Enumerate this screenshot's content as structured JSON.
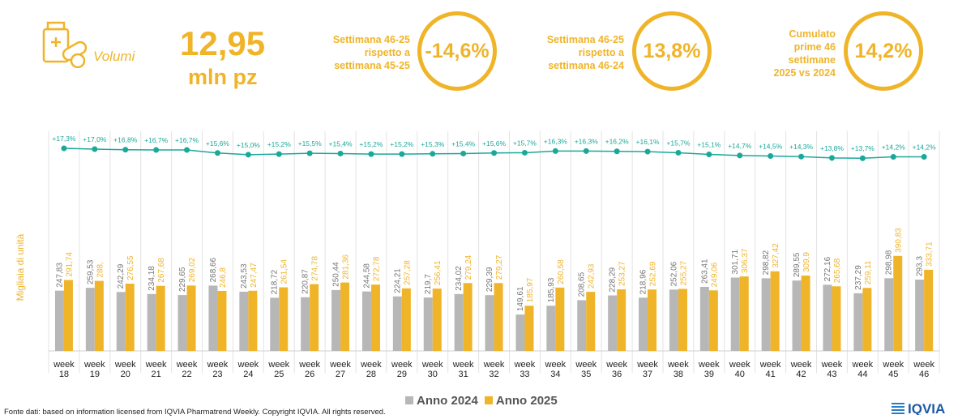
{
  "kpi": {
    "label": "Volumi",
    "value": "12,95",
    "unit": "mln pz",
    "comparisons": [
      {
        "text_lines": [
          "Settimana 46-25",
          "rispetto a",
          "settimana 45-25"
        ],
        "value": "-14,6%"
      },
      {
        "text_lines": [
          "Settimana 46-25",
          "rispetto a",
          "settimana 46-24"
        ],
        "value": "13,8%"
      },
      {
        "text_lines": [
          "Cumulato",
          "prime 46",
          "settimane",
          "2025 vs 2024"
        ],
        "value": "14,2%"
      }
    ]
  },
  "colors": {
    "accent": "#f0b429",
    "series_2024": "#b7b7b7",
    "series_2025": "#f0b429",
    "line": "#1aa89a"
  },
  "chart_data": {
    "type": "bar",
    "ylabel": "Migliaia di unità",
    "categories": [
      "week 18",
      "week 19",
      "week 20",
      "week 21",
      "week 22",
      "week 23",
      "week 24",
      "week 25",
      "week 26",
      "week 27",
      "week 28",
      "week 29",
      "week 30",
      "week 31",
      "week 32",
      "week 33",
      "week 34",
      "week 35",
      "week 36",
      "week 37",
      "week 38",
      "week 39",
      "week 40",
      "week 41",
      "week 42",
      "week 43",
      "week 44",
      "week 45",
      "week 46"
    ],
    "series": [
      {
        "name": "Anno 2024",
        "values": [
          247.83,
          259.53,
          242.29,
          234.18,
          229.65,
          268.66,
          243.53,
          218.72,
          220.87,
          250.44,
          244.58,
          224.21,
          219.7,
          234.02,
          229.39,
          149.61,
          185.93,
          208.65,
          228.29,
          218.96,
          252.06,
          263.41,
          301.71,
          298.82,
          289.55,
          272.16,
          237.29,
          298.98,
          293.3
        ],
        "labels": [
          "247,83",
          "259,53",
          "242,29",
          "234,18",
          "229,65",
          "268,66",
          "243,53",
          "218,72",
          "220,87",
          "250,44",
          "244,58",
          "224,21",
          "219,7",
          "234,02",
          "229,39",
          "149,61",
          "185,93",
          "208,65",
          "228,29",
          "218,96",
          "252,06",
          "263,41",
          "301,71",
          "298,82",
          "289,55",
          "272,16",
          "237,29",
          "298,98",
          "293,3"
        ]
      },
      {
        "name": "Anno 2025",
        "values": [
          291.74,
          288.0,
          276.55,
          267.68,
          269.02,
          246.8,
          247.47,
          261.54,
          274.78,
          281.36,
          272.78,
          257.28,
          256.41,
          279.24,
          279.27,
          185.97,
          260.58,
          242.93,
          253.27,
          252.69,
          255.27,
          249.06,
          306.37,
          327.42,
          309.9,
          265.68,
          259.11,
          390.83,
          333.71
        ],
        "labels": [
          "291,74",
          "288,",
          "276,55",
          "267,68",
          "269,02",
          "246,8",
          "247,47",
          "261,54",
          "274,78",
          "281,36",
          "272,78",
          "257,28",
          "256,41",
          "279,24",
          "279,27",
          "185,97",
          "260,58",
          "242,93",
          "253,27",
          "252,69",
          "255,27",
          "249,06",
          "306,37",
          "327,42",
          "309,9",
          "265,68",
          "259,11",
          "390,83",
          "333,71"
        ]
      },
      {
        "type": "line",
        "values": [
          17.3,
          17.0,
          16.8,
          16.7,
          16.7,
          15.6,
          15.0,
          15.2,
          15.5,
          15.4,
          15.2,
          15.2,
          15.3,
          15.4,
          15.6,
          15.7,
          16.3,
          16.3,
          16.2,
          16.1,
          15.7,
          15.1,
          14.7,
          14.5,
          14.3,
          13.8,
          13.7,
          14.2,
          14.2
        ],
        "labels": [
          "+17,3%",
          "+17,0%",
          "+16,8%",
          "+16,7%",
          "+16,7%",
          "+15,6%",
          "+15,0%",
          "+15,2%",
          "+15,5%",
          "+15,4%",
          "+15,2%",
          "+15,2%",
          "+15,3%",
          "+15,4%",
          "+15,6%",
          "+15,7%",
          "+16,3%",
          "+16,3%",
          "+16,2%",
          "+16,1%",
          "+15,7%",
          "+15,1%",
          "+14,7%",
          "+14,5%",
          "+14,3%",
          "+13,8%",
          "+13,7%",
          "+14,2%",
          "+14,2%"
        ]
      }
    ],
    "legend": [
      "Anno 2024",
      "Anno 2025"
    ],
    "legend_position": "bottom",
    "grid": "vertical"
  },
  "footer": {
    "source": "Fonte dati: based on information licensed from IQVIA Pharmatrend Weekly. Copyright IQVIA. All rights reserved.",
    "brand": "IQVIA"
  }
}
